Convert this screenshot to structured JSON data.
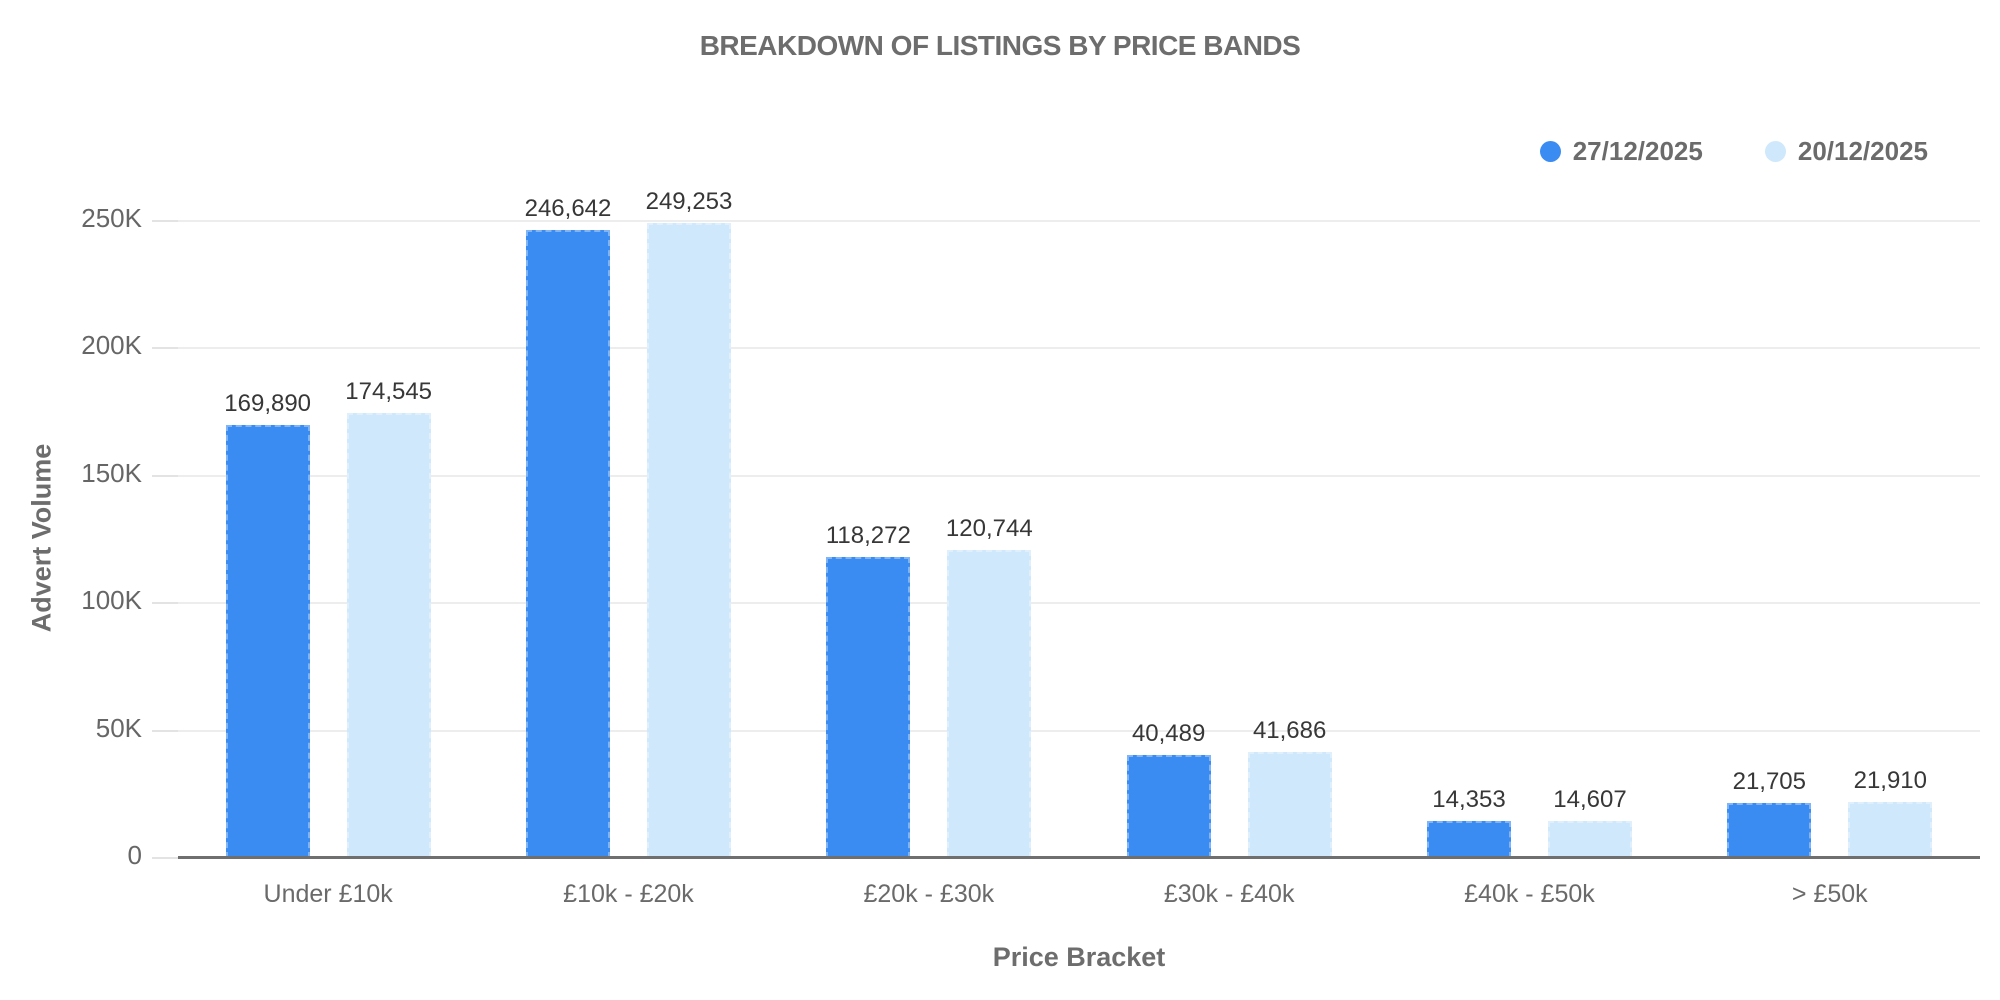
{
  "chart_data": {
    "type": "bar",
    "title": "BREAKDOWN OF LISTINGS BY PRICE BANDS",
    "xlabel": "Price Bracket",
    "ylabel": "Advert Volume",
    "categories": [
      "Under £10k",
      "£10k - £20k",
      "£20k - £30k",
      "£30k - £40k",
      "£40k - £50k",
      "> £50k"
    ],
    "series": [
      {
        "name": "27/12/2025",
        "color": "#3a8cf2",
        "values": [
          169890,
          246642,
          118272,
          40489,
          14353,
          21705
        ],
        "labels": [
          "169,890",
          "246,642",
          "118,272",
          "40,489",
          "14,353",
          "21,705"
        ]
      },
      {
        "name": "20/12/2025",
        "color": "#cfe8fb",
        "values": [
          174545,
          249253,
          120744,
          41686,
          14607,
          21910
        ],
        "labels": [
          "174,545",
          "249,253",
          "120,744",
          "41,686",
          "14,607",
          "21,910"
        ]
      }
    ],
    "yticks": [
      {
        "value": 0,
        "label": "0"
      },
      {
        "value": 50000,
        "label": "50K"
      },
      {
        "value": 100000,
        "label": "100K"
      },
      {
        "value": 150000,
        "label": "150K"
      },
      {
        "value": 200000,
        "label": "200K"
      },
      {
        "value": 250000,
        "label": "250K"
      }
    ],
    "ylim": [
      0,
      250000
    ],
    "grid": "horizontal",
    "legend_position": "top-right",
    "colors": {
      "gridline": "#ededed",
      "axis_line": "#6f6f6f",
      "tick_text": "#666666",
      "title_text": "#6d6d6d",
      "value_label_text": "#373737"
    }
  }
}
